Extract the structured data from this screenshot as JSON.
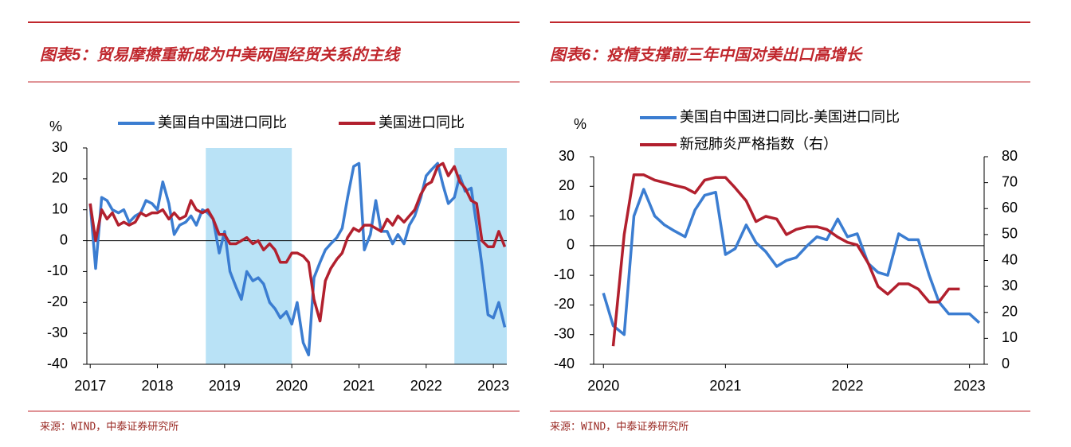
{
  "chart_data": [
    {
      "type": "line",
      "title": "图表5：贸易摩擦重新成为中美两国经贸关系的主线",
      "source": "来源：WIND，中泰证券研究所",
      "y_label": "%",
      "x": [
        2017.0,
        2017.08,
        2017.17,
        2017.25,
        2017.33,
        2017.42,
        2017.5,
        2017.58,
        2017.67,
        2017.75,
        2017.83,
        2017.92,
        2018.0,
        2018.08,
        2018.17,
        2018.25,
        2018.33,
        2018.42,
        2018.5,
        2018.58,
        2018.67,
        2018.75,
        2018.83,
        2018.92,
        2019.0,
        2019.08,
        2019.17,
        2019.25,
        2019.33,
        2019.42,
        2019.5,
        2019.58,
        2019.67,
        2019.75,
        2019.83,
        2019.92,
        2020.0,
        2020.08,
        2020.17,
        2020.25,
        2020.33,
        2020.42,
        2020.5,
        2020.58,
        2020.67,
        2020.75,
        2020.83,
        2020.92,
        2021.0,
        2021.08,
        2021.17,
        2021.25,
        2021.33,
        2021.42,
        2021.5,
        2021.58,
        2021.67,
        2021.75,
        2021.83,
        2021.92,
        2022.0,
        2022.08,
        2022.17,
        2022.25,
        2022.33,
        2022.42,
        2022.5,
        2022.58,
        2022.67,
        2022.75,
        2022.83,
        2022.92,
        2023.0,
        2023.08,
        2023.17
      ],
      "series": [
        {
          "name": "美国自中国进口同比",
          "color": "#3b7dd1",
          "values": [
            12,
            -9,
            14,
            13,
            10,
            9,
            10,
            6,
            8,
            9,
            13,
            12,
            10,
            19,
            12,
            2,
            5,
            6,
            8,
            5,
            10,
            9,
            7,
            -4,
            3,
            -10,
            -15,
            -19,
            -10,
            -13,
            -12,
            -14,
            -20,
            -22,
            -25,
            -23,
            -27,
            -20,
            -33,
            -37,
            -12,
            -7,
            -3,
            -1,
            1,
            4,
            14,
            24,
            25,
            -3,
            2,
            13,
            3,
            3,
            -1,
            2,
            -1,
            5,
            8,
            14,
            21,
            23,
            25,
            18,
            12,
            14,
            21,
            16,
            17,
            5,
            -8,
            -24,
            -25,
            -20,
            -28
          ]
        },
        {
          "name": "美国进口同比",
          "color": "#b2202e",
          "values": [
            12,
            0,
            10,
            7,
            9,
            5,
            6,
            5,
            6,
            9,
            8,
            9,
            9,
            10,
            7,
            9,
            7,
            8,
            13,
            10,
            9,
            10,
            7,
            2,
            2,
            -1,
            -1,
            0,
            1,
            -1,
            0,
            -3,
            -1,
            -3,
            -7,
            -7,
            -4,
            -4,
            -5,
            -7,
            -19,
            -26,
            -13,
            -9,
            -6,
            -4,
            1,
            4,
            3,
            5,
            5,
            4,
            3,
            7,
            5,
            8,
            6,
            8,
            10,
            15,
            18,
            19,
            24,
            25,
            21,
            24,
            19,
            17,
            13,
            12,
            0,
            -2,
            -2,
            3,
            -2
          ]
        }
      ],
      "shaded_ranges": [
        [
          2018.72,
          2020.0
        ],
        [
          2022.42,
          2023.2
        ]
      ],
      "shade_color": "#b9e2f6",
      "xlim": [
        2016.95,
        2023.2
      ],
      "xticks": [
        2017,
        2018,
        2019,
        2020,
        2021,
        2022,
        2023
      ],
      "ylim": [
        -40,
        30
      ],
      "yticks": [
        -40,
        -30,
        -20,
        -10,
        0,
        10,
        20,
        30
      ]
    },
    {
      "type": "line",
      "title": "图表6：疫情支撑前三年中国对美出口高增长",
      "source": "来源：WIND，中泰证券研究所",
      "y_label": "%",
      "x": [
        2020.0,
        2020.08,
        2020.17,
        2020.25,
        2020.33,
        2020.42,
        2020.5,
        2020.58,
        2020.67,
        2020.75,
        2020.83,
        2020.92,
        2021.0,
        2021.08,
        2021.17,
        2021.25,
        2021.33,
        2021.42,
        2021.5,
        2021.58,
        2021.67,
        2021.75,
        2021.83,
        2021.92,
        2022.0,
        2022.08,
        2022.17,
        2022.25,
        2022.33,
        2022.42,
        2022.5,
        2022.58,
        2022.67,
        2022.75,
        2022.83,
        2022.92,
        2023.0,
        2023.08
      ],
      "series": [
        {
          "name": "美国自中国进口同比-美国进口同比",
          "color": "#3b7dd1",
          "values": [
            -16,
            -27,
            -30,
            10,
            19,
            10,
            7,
            5,
            3,
            12,
            17,
            18,
            -3,
            -1,
            7,
            1,
            -2,
            -7,
            -5,
            -4,
            0,
            3,
            2,
            9,
            3,
            4,
            -6,
            -9,
            -10,
            4,
            2,
            2,
            -10,
            -19,
            -23,
            -23,
            -23,
            -26
          ]
        },
        {
          "name": "新冠肺炎严格指数（右）",
          "color": "#b2202e",
          "axis": "y2",
          "values": [
            null,
            7,
            50,
            73,
            73,
            71,
            70,
            69,
            68,
            66,
            71,
            72,
            72,
            68,
            63,
            55,
            57,
            56,
            50,
            52,
            53,
            53,
            52,
            49,
            47,
            46,
            39,
            30,
            27,
            31,
            31,
            29,
            24,
            24,
            29,
            29,
            null,
            null
          ]
        }
      ],
      "xlim": [
        2019.92,
        2023.12
      ],
      "xticks": [
        2020,
        2021,
        2022,
        2023
      ],
      "ylim": [
        -40,
        30
      ],
      "yticks": [
        -40,
        -30,
        -20,
        -10,
        0,
        10,
        20,
        30
      ],
      "y2lim": [
        0,
        80
      ],
      "y2ticks": [
        0,
        10,
        20,
        30,
        40,
        50,
        60,
        70,
        80
      ]
    }
  ]
}
